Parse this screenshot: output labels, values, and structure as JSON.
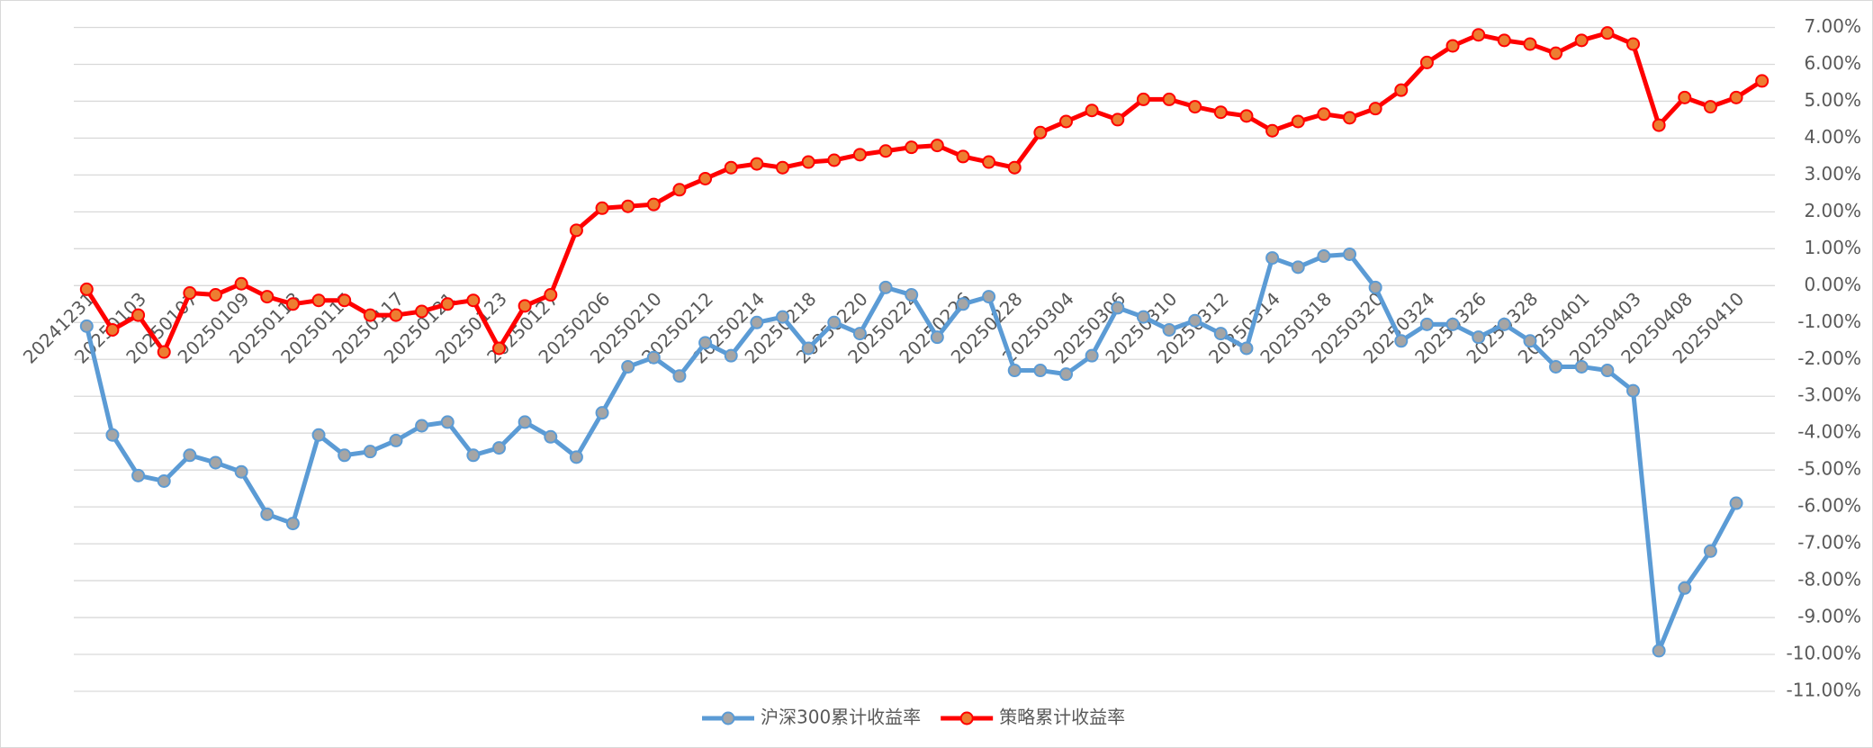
{
  "chart_data": {
    "type": "line",
    "categories": [
      "20241231",
      null,
      "20250103",
      null,
      "20250107",
      null,
      "20250109",
      null,
      "20250113",
      null,
      "20250115",
      null,
      "20250117",
      null,
      "20250121",
      null,
      "20250123",
      null,
      "20250127",
      null,
      "20250206",
      null,
      "20250210",
      null,
      "20250212",
      null,
      "20250214",
      null,
      "20250218",
      null,
      "20250220",
      null,
      "20250224",
      null,
      "20250226",
      null,
      "20250228",
      null,
      "20250304",
      null,
      "20250306",
      null,
      "20250310",
      null,
      "20250312",
      null,
      "20250314",
      null,
      "20250318",
      null,
      "20250320",
      null,
      "20250324",
      null,
      "20250326",
      null,
      "20250328",
      null,
      "20250401",
      null,
      "20250403",
      null,
      "20250408",
      null,
      "20250410",
      null
    ],
    "series": [
      {
        "name": "沪深300累计收益率",
        "color": "#5b9bd5",
        "marker_color": "#a5a5a5",
        "values": [
          -1.1,
          -4.05,
          -5.15,
          -5.3,
          -4.6,
          -4.8,
          -5.05,
          -6.2,
          -6.45,
          -4.05,
          -4.6,
          -4.5,
          -4.2,
          -3.8,
          -3.7,
          -4.6,
          -4.4,
          -3.7,
          -4.1,
          -4.65,
          -3.45,
          -2.2,
          -1.95,
          -2.45,
          -1.55,
          -1.9,
          -1.0,
          -0.85,
          -1.7,
          -1.0,
          -1.3,
          -0.05,
          -0.25,
          -1.4,
          -0.5,
          -0.3,
          -2.3,
          -2.3,
          -2.4,
          -1.9,
          -0.6,
          -0.85,
          -1.2,
          -0.95,
          -1.3,
          -1.7,
          0.75,
          0.5,
          0.8,
          0.85,
          -0.05,
          -1.5,
          -1.05,
          -1.05,
          -1.4,
          -1.05,
          -1.5,
          -2.2,
          -2.2,
          -2.3,
          -2.85,
          -9.9,
          -8.2,
          -7.2,
          -5.9,
          null
        ]
      },
      {
        "name": "策略累计收益率",
        "color": "#ff0000",
        "marker_color": "#ed7d31",
        "values": [
          -0.1,
          -1.2,
          -0.8,
          -1.8,
          -0.2,
          -0.25,
          0.05,
          -0.3,
          -0.5,
          -0.4,
          -0.4,
          -0.8,
          -0.8,
          -0.7,
          -0.5,
          -0.4,
          -1.7,
          -0.55,
          -0.25,
          1.5,
          2.1,
          2.15,
          2.2,
          2.6,
          2.9,
          3.2,
          3.3,
          3.2,
          3.35,
          3.4,
          3.55,
          3.65,
          3.75,
          3.8,
          3.5,
          3.35,
          3.2,
          4.15,
          4.45,
          4.75,
          4.5,
          5.05,
          5.05,
          4.85,
          4.7,
          4.6,
          4.2,
          4.45,
          4.65,
          4.55,
          4.8,
          5.3,
          6.05,
          6.5,
          6.8,
          6.65,
          6.55,
          6.3,
          6.65,
          6.85,
          6.55,
          4.35,
          5.1,
          4.85,
          5.1,
          5.55
        ]
      }
    ],
    "ylim": [
      -11,
      7
    ],
    "yticks": [
      {
        "value": 7,
        "label": "7.00%"
      },
      {
        "value": 6,
        "label": "6.00%"
      },
      {
        "value": 5,
        "label": "5.00%"
      },
      {
        "value": 4,
        "label": "4.00%"
      },
      {
        "value": 3,
        "label": "3.00%"
      },
      {
        "value": 2,
        "label": "2.00%"
      },
      {
        "value": 1,
        "label": "1.00%"
      },
      {
        "value": 0,
        "label": "0.00%"
      },
      {
        "value": -1,
        "label": "-1.00%"
      },
      {
        "value": -2,
        "label": "-2.00%"
      },
      {
        "value": -3,
        "label": "-3.00%"
      },
      {
        "value": -4,
        "label": "-4.00%"
      },
      {
        "value": -5,
        "label": "-5.00%"
      },
      {
        "value": -6,
        "label": "-6.00%"
      },
      {
        "value": -7,
        "label": "-7.00%"
      },
      {
        "value": -8,
        "label": "-8.00%"
      },
      {
        "value": -9,
        "label": "-9.00%"
      },
      {
        "value": -10,
        "label": "-10.00%"
      },
      {
        "value": -11,
        "label": "-11.00%"
      }
    ],
    "grid": true,
    "legend": "bottom"
  }
}
